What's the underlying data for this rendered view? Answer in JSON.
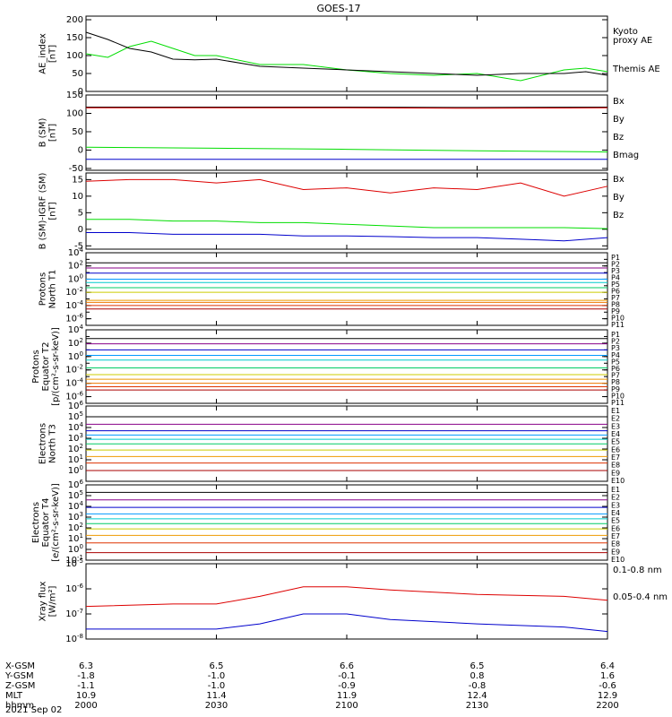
{
  "title": "GOES-17",
  "date_label": "2021 Sep 02",
  "colors": {
    "black": "#000000",
    "green": "#00dd00",
    "red": "#dd0000",
    "blue": "#0000cc"
  },
  "chart_data": [
    {
      "id": "ae",
      "type": "line",
      "ylabel": [
        "AE_index",
        "[nT]"
      ],
      "yticks": [
        0,
        50,
        100,
        150,
        200
      ],
      "ylim": [
        0,
        210
      ],
      "legend": [
        {
          "text": "Kyoto",
          "color": "#00dd00"
        },
        {
          "text": "proxy AE",
          "color": "#00dd00"
        },
        {
          "text": "Themis AE",
          "color": "#000000"
        }
      ],
      "x": [
        2000,
        2005,
        2010,
        2015,
        2020,
        2025,
        2030,
        2040,
        2050,
        2100,
        2110,
        2120,
        2130,
        2140,
        2150,
        2155,
        2200
      ],
      "series": [
        {
          "name": "Kyoto proxy AE",
          "color": "#00dd00",
          "values": [
            105,
            95,
            125,
            140,
            120,
            100,
            100,
            75,
            75,
            60,
            50,
            45,
            50,
            30,
            60,
            65,
            55
          ]
        },
        {
          "name": "Themis AE",
          "color": "#000000",
          "values": [
            165,
            145,
            120,
            110,
            90,
            88,
            90,
            70,
            65,
            60,
            55,
            50,
            45,
            50,
            50,
            55,
            45
          ]
        }
      ]
    },
    {
      "id": "bsm",
      "type": "line",
      "ylabel": [
        "B (SM)",
        "[nT]"
      ],
      "yticks": [
        -50,
        0,
        50,
        100,
        150
      ],
      "ylim": [
        -55,
        150
      ],
      "legend": [
        {
          "text": "Bx",
          "color": "#0000cc"
        },
        {
          "text": "By",
          "color": "#00dd00"
        },
        {
          "text": "Bz",
          "color": "#dd0000"
        },
        {
          "text": "Bmag",
          "color": "#000000"
        }
      ],
      "x": [
        2000,
        2030,
        2100,
        2130,
        2200
      ],
      "series": [
        {
          "name": "Bmag",
          "color": "#000000",
          "values": [
            117,
            117,
            117,
            116,
            117
          ]
        },
        {
          "name": "Bz",
          "color": "#dd0000",
          "values": [
            115,
            115,
            115,
            114,
            115
          ]
        },
        {
          "name": "By",
          "color": "#00dd00",
          "values": [
            8,
            5,
            2,
            -2,
            -5
          ]
        },
        {
          "name": "Bx",
          "color": "#0000cc",
          "values": [
            -25,
            -25,
            -25,
            -25,
            -25
          ]
        }
      ]
    },
    {
      "id": "bdiff",
      "type": "line",
      "ylabel": [
        "B (SM)-IGRF (SM)",
        "[nT]"
      ],
      "yticks": [
        -5,
        0,
        5,
        10,
        15
      ],
      "ylim": [
        -6,
        17
      ],
      "legend": [
        {
          "text": "Bx",
          "color": "#0000cc"
        },
        {
          "text": "By",
          "color": "#00dd00"
        },
        {
          "text": "Bz",
          "color": "#dd0000"
        }
      ],
      "x": [
        2000,
        2010,
        2020,
        2030,
        2040,
        2050,
        2100,
        2110,
        2120,
        2130,
        2140,
        2150,
        2200
      ],
      "series": [
        {
          "name": "Bz",
          "color": "#dd0000",
          "values": [
            14.5,
            15,
            15,
            14,
            15,
            12,
            12.5,
            11,
            12.5,
            12,
            14,
            10,
            13
          ]
        },
        {
          "name": "By",
          "color": "#00dd00",
          "values": [
            3,
            3,
            2.5,
            2.5,
            2,
            2,
            1.5,
            1,
            0.5,
            0.5,
            0.5,
            0.5,
            0.2
          ]
        },
        {
          "name": "Bx",
          "color": "#0000cc",
          "values": [
            -1,
            -1,
            -1.5,
            -1.5,
            -1.5,
            -2,
            -2,
            -2.2,
            -2.5,
            -2.5,
            -3,
            -3.5,
            -2.5
          ]
        }
      ]
    },
    {
      "id": "protn",
      "type": "line",
      "log": true,
      "ylabel": [
        "Protons",
        "North T1"
      ],
      "ymin_exp": -7,
      "ymax_exp": 4,
      "ytick_exps": [
        -6,
        -4,
        -2,
        0,
        2,
        4
      ],
      "channels": [
        {
          "label": "P1",
          "color": "#000000",
          "value": 300
        },
        {
          "label": "P2",
          "color": "#880088",
          "value": 50
        },
        {
          "label": "P3",
          "color": "#0000cc",
          "value": 8
        },
        {
          "label": "P4",
          "color": "#0099ff",
          "value": 1
        },
        {
          "label": "P5",
          "color": "#00cccc",
          "value": 0.3
        },
        {
          "label": "P6",
          "color": "#00cc66",
          "value": 0.05
        },
        {
          "label": "P7",
          "color": "#cccc00",
          "value": 0.01
        },
        {
          "label": "P8",
          "color": "#ee9900",
          "value": 0.0006
        },
        {
          "label": "P9",
          "color": "#ee7700",
          "value": 0.0003
        },
        {
          "label": "P10",
          "color": "#dd3300",
          "value": 0.0001
        },
        {
          "label": "P11",
          "color": "#aa0000",
          "value": 3e-05
        }
      ]
    },
    {
      "id": "prote",
      "type": "line",
      "log": true,
      "ylabel": [
        "Protons",
        "Equator T2",
        "[p/(cm²-s-sr-keV)]"
      ],
      "ymin_exp": -7,
      "ymax_exp": 4,
      "ytick_exps": [
        -6,
        -4,
        -2,
        0,
        2,
        4
      ],
      "channels": [
        {
          "label": "P1",
          "color": "#000000",
          "value": 500
        },
        {
          "label": "P2",
          "color": "#880088",
          "value": 80
        },
        {
          "label": "P3",
          "color": "#0000cc",
          "value": 10
        },
        {
          "label": "P4",
          "color": "#0099ff",
          "value": 1.5
        },
        {
          "label": "P5",
          "color": "#00cccc",
          "value": 0.3
        },
        {
          "label": "P6",
          "color": "#00cc66",
          "value": 0.02
        },
        {
          "label": "P7",
          "color": "#cccc00",
          "value": 0.002
        },
        {
          "label": "P8",
          "color": "#ee9900",
          "value": 0.0004
        },
        {
          "label": "P9",
          "color": "#ee7700",
          "value": 0.0001
        },
        {
          "label": "P10",
          "color": "#dd3300",
          "value": 3e-05
        },
        {
          "label": "P11",
          "color": "#aa0000",
          "value": 1e-05
        }
      ]
    },
    {
      "id": "elecn",
      "type": "line",
      "log": true,
      "ylabel": [
        "Electrons",
        "North T3"
      ],
      "ymin_exp": -1,
      "ymax_exp": 6,
      "ytick_exps": [
        0,
        1,
        2,
        3,
        4,
        5,
        6
      ],
      "channels": [
        {
          "label": "E1",
          "color": "#000000",
          "value": 100000
        },
        {
          "label": "E2",
          "color": "#880088",
          "value": 20000
        },
        {
          "label": "E3",
          "color": "#0000cc",
          "value": 5000
        },
        {
          "label": "E4",
          "color": "#0099ff",
          "value": 2000
        },
        {
          "label": "E5",
          "color": "#00cccc",
          "value": 800
        },
        {
          "label": "E6",
          "color": "#00cc66",
          "value": 300
        },
        {
          "label": "E7",
          "color": "#cccc00",
          "value": 80
        },
        {
          "label": "E8",
          "color": "#ee9900",
          "value": 20
        },
        {
          "label": "E9",
          "color": "#dd3300",
          "value": 5
        },
        {
          "label": "E10",
          "color": "#aa0000",
          "value": 1
        }
      ]
    },
    {
      "id": "elece",
      "type": "line",
      "log": true,
      "ylabel": [
        "Electrons",
        "Equator T4",
        "[e/(cm²-s-sr-keV)]"
      ],
      "ymin_exp": -1,
      "ymax_exp": 6,
      "ytick_exps": [
        -1,
        0,
        1,
        2,
        3,
        4,
        5,
        6
      ],
      "channels": [
        {
          "label": "E1",
          "color": "#000000",
          "value": 200000
        },
        {
          "label": "E2",
          "color": "#880088",
          "value": 40000
        },
        {
          "label": "E3",
          "color": "#0000cc",
          "value": 8000
        },
        {
          "label": "E4",
          "color": "#0099ff",
          "value": 2000
        },
        {
          "label": "E5",
          "color": "#00cccc",
          "value": 700
        },
        {
          "label": "E6",
          "color": "#00cc66",
          "value": 250
        },
        {
          "label": "E7",
          "color": "#cccc00",
          "value": 80
        },
        {
          "label": "E8",
          "color": "#ee9900",
          "value": 20
        },
        {
          "label": "E9",
          "color": "#dd3300",
          "value": 4
        },
        {
          "label": "E10",
          "color": "#aa0000",
          "value": 0.5
        }
      ]
    },
    {
      "id": "xray",
      "type": "line",
      "log": true,
      "ylabel": [
        "Xray flux",
        "[W/m²]"
      ],
      "ymin_exp": -8,
      "ymax_exp": -5,
      "ytick_exps": [
        -8,
        -7,
        -6,
        -5
      ],
      "legend": [
        {
          "text": "0.1-0.8 nm",
          "color": "#dd0000"
        },
        {
          "text": "0.05-0.4 nm",
          "color": "#0000cc"
        }
      ],
      "x": [
        2000,
        2020,
        2030,
        2040,
        2050,
        2100,
        2110,
        2130,
        2150,
        2200
      ],
      "series": [
        {
          "name": "0.1-0.8 nm",
          "color": "#dd0000",
          "values": [
            2e-07,
            2.5e-07,
            2.5e-07,
            5e-07,
            1.2e-06,
            1.2e-06,
            9e-07,
            6e-07,
            5e-07,
            3.5e-07
          ]
        },
        {
          "name": "0.05-0.4 nm",
          "color": "#0000cc",
          "values": [
            2.5e-08,
            2.5e-08,
            2.5e-08,
            4e-08,
            1e-07,
            1e-07,
            6e-08,
            4e-08,
            3e-08,
            2e-08
          ]
        }
      ]
    }
  ],
  "xaxis": {
    "row_labels": [
      "X-GSM",
      "Y-GSM",
      "Z-GSM",
      "MLT",
      "hhmm"
    ],
    "columns": [
      [
        "6.3",
        "-1.8",
        "-1.1",
        "10.9",
        "2000"
      ],
      [
        "6.5",
        "-1.0",
        "-1.0",
        "11.4",
        "2030"
      ],
      [
        "6.6",
        "-0.1",
        "-0.9",
        "11.9",
        "2100"
      ],
      [
        "6.5",
        "0.8",
        "-0.8",
        "12.4",
        "2130"
      ],
      [
        "6.4",
        "1.6",
        "-0.6",
        "12.9",
        "2200"
      ]
    ]
  }
}
